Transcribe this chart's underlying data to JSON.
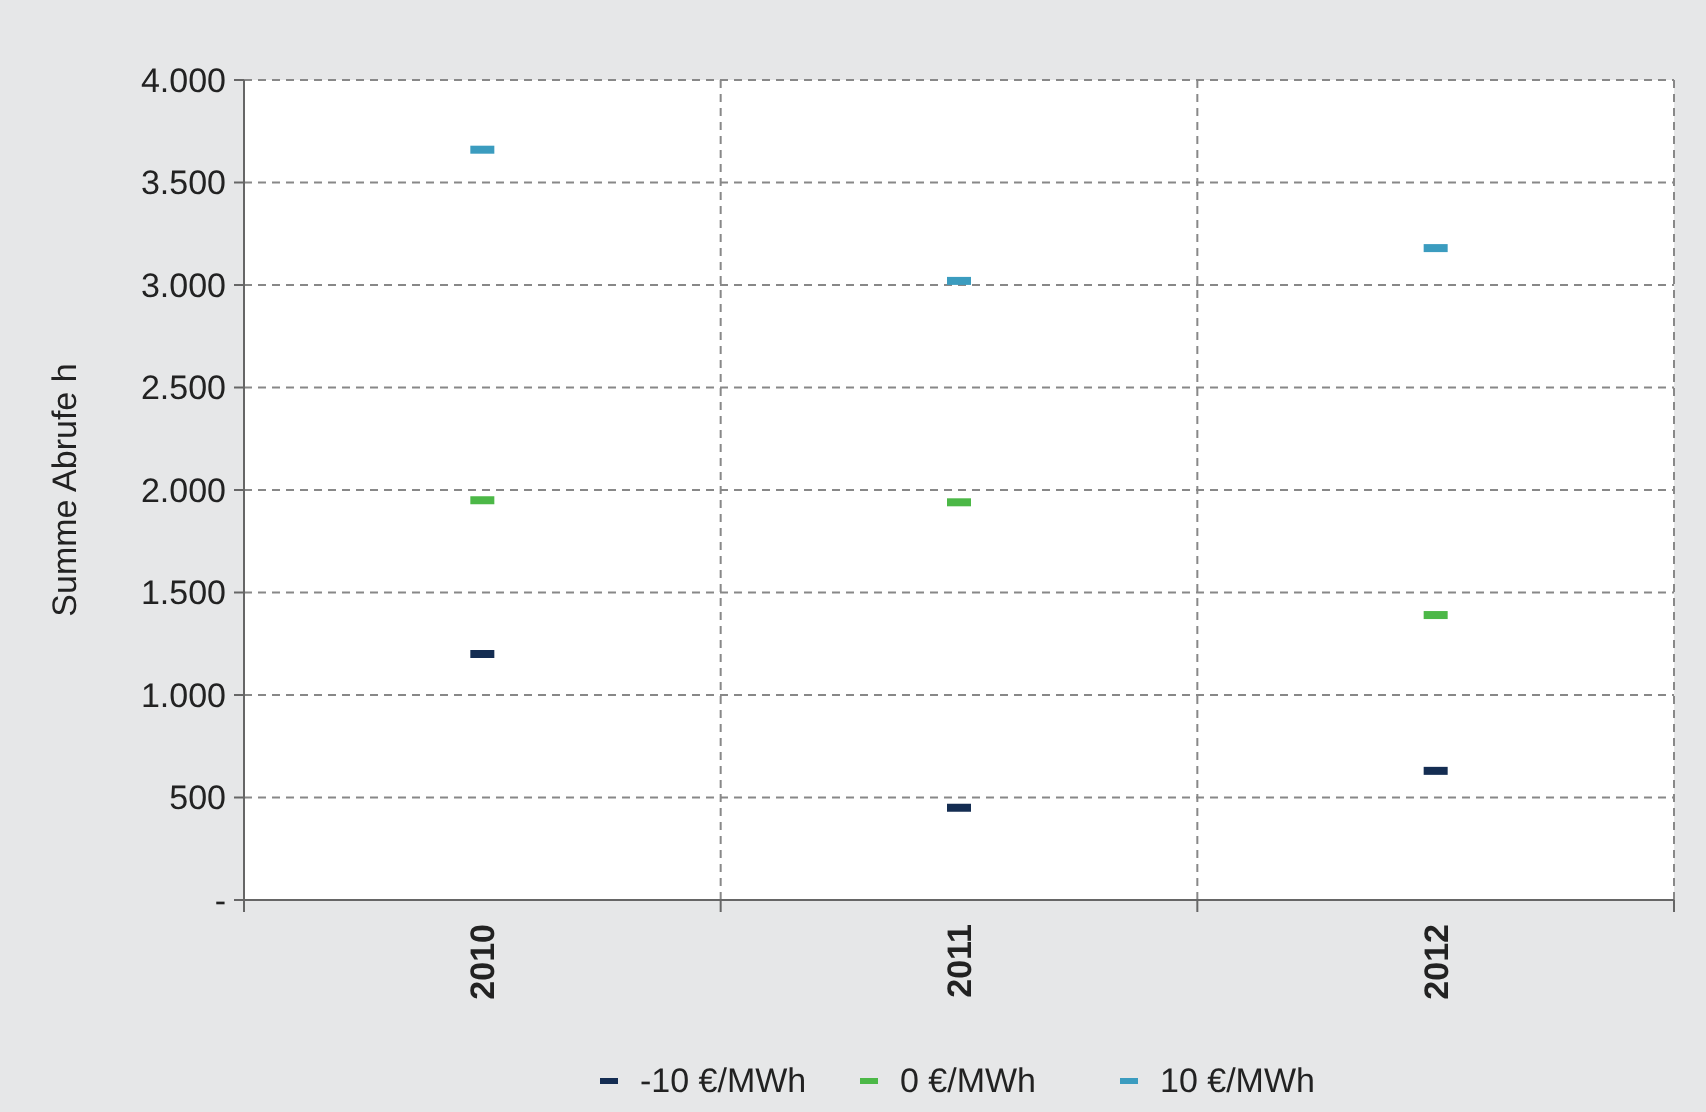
{
  "chart_data": {
    "type": "scatter",
    "ylabel": "Summe  Abrufe  h",
    "categories": [
      "2010",
      "2011",
      "2012"
    ],
    "series": [
      {
        "name": "-10 €/MWh",
        "color": "#142d52",
        "values": [
          1200,
          450,
          630
        ]
      },
      {
        "name": "0 €/MWh",
        "color": "#4cb847",
        "values": [
          1950,
          1940,
          1390
        ]
      },
      {
        "name": "10 €/MWh",
        "color": "#3b9cbf",
        "values": [
          3660,
          3020,
          3180
        ]
      }
    ],
    "ylim": [
      0,
      4000
    ],
    "yticks": [
      {
        "value": 0,
        "label": "-"
      },
      {
        "value": 500,
        "label": "500"
      },
      {
        "value": 1000,
        "label": "1.000"
      },
      {
        "value": 1500,
        "label": "1.500"
      },
      {
        "value": 2000,
        "label": "2.000"
      },
      {
        "value": 2500,
        "label": "2.500"
      },
      {
        "value": 3000,
        "label": "3.000"
      },
      {
        "value": 3500,
        "label": "3.500"
      },
      {
        "value": 4000,
        "label": "4.000"
      }
    ],
    "grid": true,
    "legend": "bottom"
  }
}
